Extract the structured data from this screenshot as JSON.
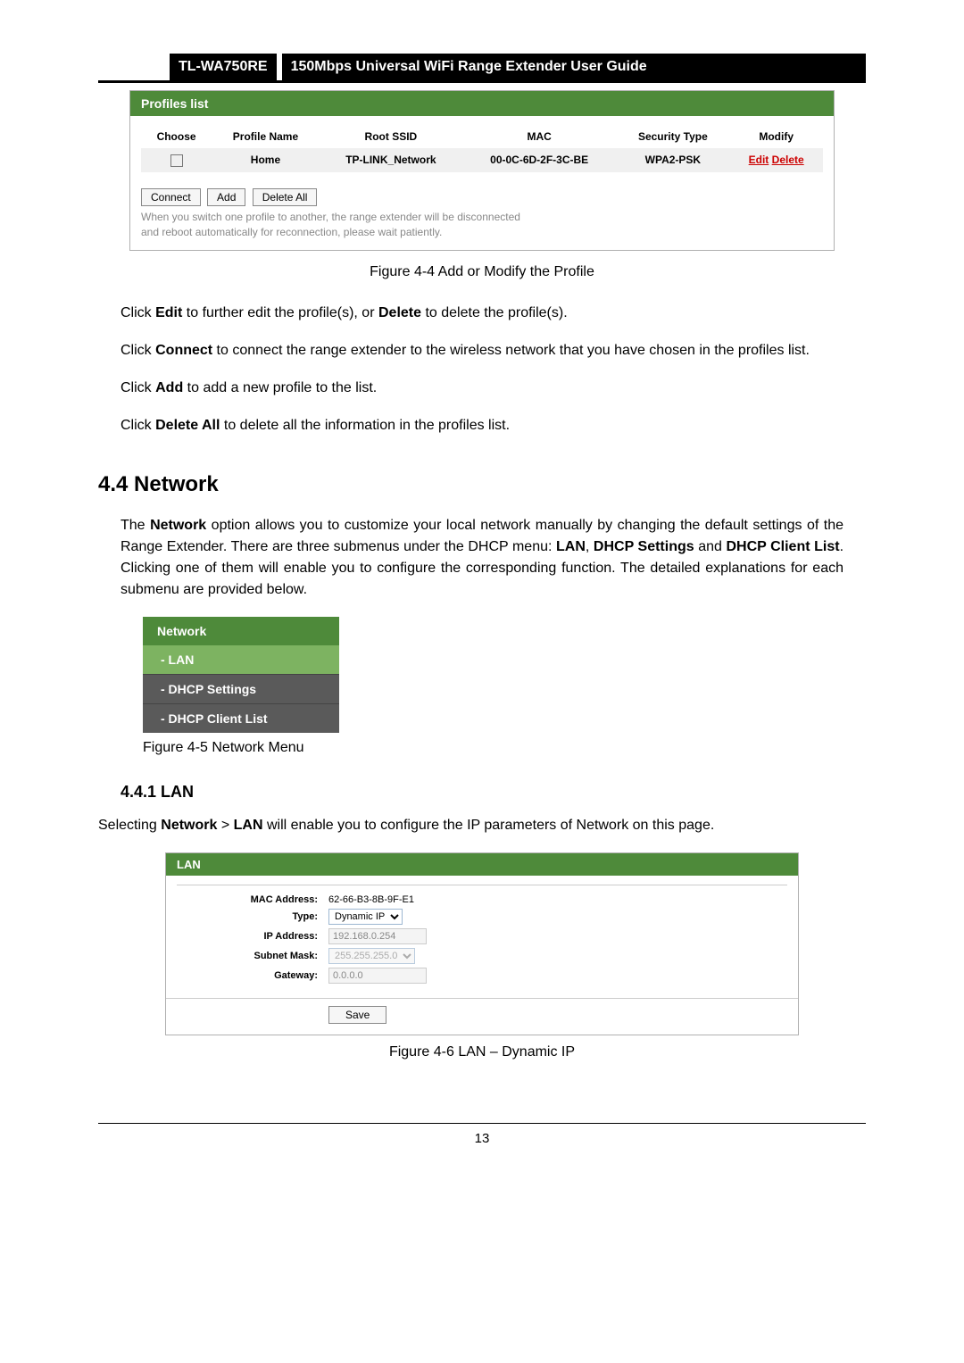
{
  "header": {
    "model": "TL-WA750RE",
    "title": "150Mbps Universal WiFi Range Extender User Guide"
  },
  "profiles": {
    "heading": "Profiles list",
    "columns": [
      "Choose",
      "Profile Name",
      "Root SSID",
      "MAC",
      "Security Type",
      "Modify"
    ],
    "row": {
      "profile_name": "Home",
      "root_ssid": "TP-LINK_Network",
      "mac": "00-0C-6D-2F-3C-BE",
      "security_type": "WPA2-PSK",
      "edit": "Edit",
      "delete": "Delete"
    },
    "buttons": {
      "connect": "Connect",
      "add": "Add",
      "delete_all": "Delete All"
    },
    "note1": "When you switch one profile to another, the range extender will be disconnected",
    "note2": "and reboot automatically for reconnection, please wait patiently.",
    "caption": "Figure 4-4 Add or Modify the Profile"
  },
  "para1": {
    "pre": "Click ",
    "b1": "Edit",
    "mid": " to further edit the profile(s), or ",
    "b2": "Delete",
    "post": " to delete the profile(s)."
  },
  "para2": {
    "pre": "Click ",
    "b": "Connect",
    "post": " to connect the range extender to the wireless network that you have chosen in the profiles list."
  },
  "para3": {
    "pre": "Click ",
    "b": "Add",
    "post": " to add a new profile to the list."
  },
  "para4": {
    "pre": "Click ",
    "b": "Delete All",
    "post": " to delete all the information in the profiles list."
  },
  "section44": {
    "heading": "4.4   Network",
    "para_pre": "The ",
    "para_b1": "Network",
    "para_mid1": " option allows you to customize your local network manually by changing the default settings of the Range Extender. There are three submenus under the DHCP menu: ",
    "para_b2": "LAN",
    "para_sep1": ", ",
    "para_b3": "DHCP Settings",
    "para_sep2": " and ",
    "para_b4": "DHCP Client List",
    "para_post": ". Clicking one of them will enable you to configure the corresponding function. The detailed explanations for each submenu are provided below."
  },
  "network_menu": {
    "title": "Network",
    "items": [
      "- LAN",
      "- DHCP Settings",
      "- DHCP Client List"
    ],
    "caption": "Figure 4-5 Network Menu"
  },
  "section441": {
    "heading": "4.4.1  LAN",
    "para_pre": "Selecting ",
    "para_b1": "Network",
    "para_sep": " > ",
    "para_b2": "LAN",
    "para_post": " will enable you to configure the IP parameters of Network on this page."
  },
  "lan": {
    "title": "LAN",
    "labels": {
      "mac": "MAC Address:",
      "type": "Type:",
      "ip": "IP Address:",
      "subnet": "Subnet Mask:",
      "gateway": "Gateway:"
    },
    "values": {
      "mac": "62-66-B3-8B-9F-E1",
      "type": "Dynamic IP",
      "ip": "192.168.0.254",
      "subnet": "255.255.255.0",
      "gateway": "0.0.0.0"
    },
    "save": "Save",
    "caption": "Figure 4-6 LAN – Dynamic IP"
  },
  "page_number": "13"
}
